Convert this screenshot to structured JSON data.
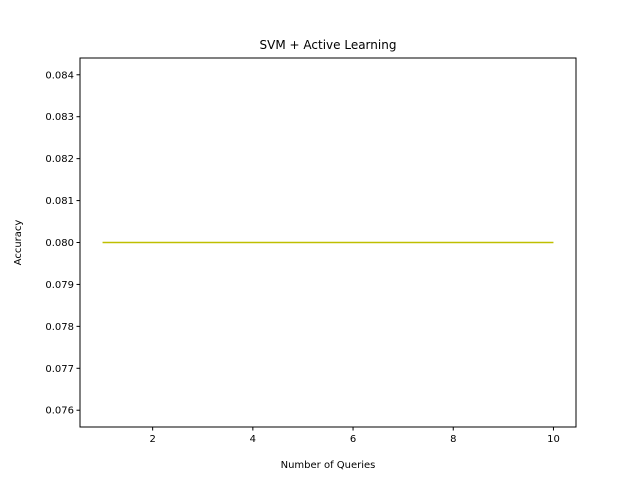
{
  "chart_data": {
    "type": "line",
    "title": "SVM + Active Learning",
    "xlabel": "Number of Queries",
    "ylabel": "Accuracy",
    "xlim": [
      0.55,
      10.45
    ],
    "ylim": [
      0.0756,
      0.0844
    ],
    "xticks": [
      2,
      4,
      6,
      8,
      10
    ],
    "xtick_labels": [
      "2",
      "4",
      "6",
      "8",
      "10"
    ],
    "yticks": [
      0.076,
      0.077,
      0.078,
      0.079,
      0.08,
      0.081,
      0.082,
      0.083,
      0.084
    ],
    "ytick_labels": [
      "0.076",
      "0.077",
      "0.078",
      "0.079",
      "0.080",
      "0.081",
      "0.082",
      "0.083",
      "0.084"
    ],
    "grid": false,
    "legend": "none",
    "series": [
      {
        "color": "#bfbf00",
        "x": [
          1,
          2,
          3,
          4,
          5,
          6,
          7,
          8,
          9,
          10
        ],
        "y": [
          0.08,
          0.08,
          0.08,
          0.08,
          0.08,
          0.08,
          0.08,
          0.08,
          0.08,
          0.08
        ]
      }
    ]
  }
}
